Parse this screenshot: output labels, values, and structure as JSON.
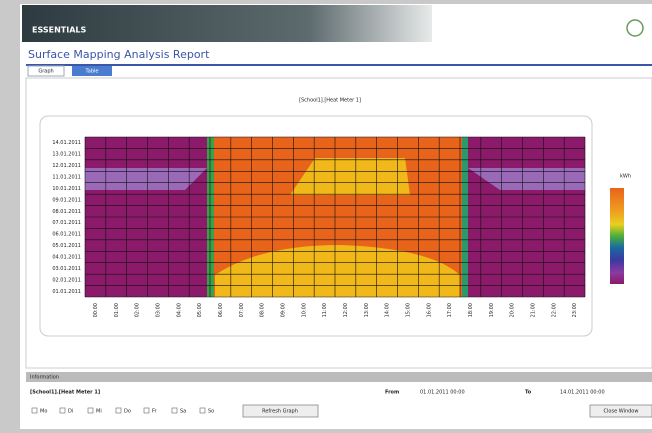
{
  "header": {
    "banner": "ESSENTIALS",
    "title": "Surface Mapping Analysis Report"
  },
  "tabs": [
    "Graph",
    "Table"
  ],
  "chart": {
    "title": "[School1].[Heat Meter 1]",
    "unit": "kWh",
    "y_labels": [
      "14.01.2011",
      "13.01.2011",
      "12.01.2011",
      "11.01.2011",
      "10.01.2011",
      "09.01.2011",
      "08.01.2011",
      "07.01.2011",
      "06.01.2011",
      "05.01.2011",
      "04.01.2011",
      "03.01.2011",
      "02.01.2011",
      "01.01.2011"
    ],
    "x_labels": [
      "00:00",
      "01:00",
      "02:00",
      "03:00",
      "04:00",
      "05:00",
      "06:00",
      "07:00",
      "08:00",
      "09:00",
      "10:00",
      "11:00",
      "12:00",
      "13:00",
      "14:00",
      "15:00",
      "16:00",
      "17:00",
      "18:00",
      "19:00",
      "20:00",
      "21:00",
      "22:00",
      "23:00"
    ]
  },
  "info": {
    "heading": "Information",
    "meter": "[School1].[Heat Meter 1]",
    "from_label": "From",
    "from_value": "01.01.2011 00:00",
    "to_label": "To",
    "to_value": "14.01.2011 00:00",
    "weekdays": [
      "Mo",
      "Di",
      "Mi",
      "Do",
      "Fr",
      "Sa",
      "So"
    ],
    "refresh": "Refresh Graph",
    "close": "Close Window"
  }
}
